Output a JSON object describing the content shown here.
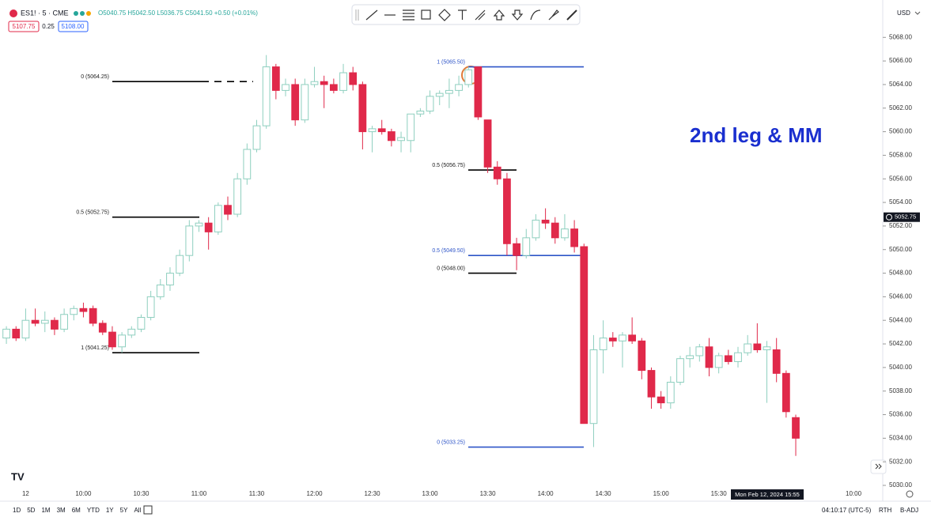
{
  "header": {
    "symbol": "ES1! · 5 · CME",
    "ohlc": "O5040.75 H5042.50 L5036.75 C5041.50 +0.50 (+0.01%)",
    "sell": "5107.75",
    "spread": "0.25",
    "buy": "5108.00",
    "currency": "USD"
  },
  "footer": {
    "ranges": [
      "1D",
      "5D",
      "1M",
      "3M",
      "6M",
      "YTD",
      "1Y",
      "5Y",
      "All"
    ],
    "clock": "04:10:17 (UTC-5)",
    "session": "RTH",
    "adjust": "B-ADJ"
  },
  "chart_data": {
    "type": "candlestick",
    "up_color": "#8ecfbf",
    "down_color": "#e0294a",
    "categories": [
      null,
      null,
      "12",
      null,
      null,
      null,
      null,
      null,
      "10:00",
      null,
      null,
      null,
      null,
      null,
      "10:30",
      null,
      null,
      null,
      null,
      null,
      "11:00",
      null,
      null,
      null,
      null,
      null,
      "11:30",
      null,
      null,
      null,
      null,
      null,
      "12:00",
      null,
      null,
      null,
      null,
      null,
      "12:30",
      null,
      null,
      null,
      null,
      null,
      "13:00",
      null,
      null,
      null,
      null,
      null,
      "13:30",
      null,
      null,
      null,
      null,
      null,
      "14:00",
      null,
      null,
      null,
      null,
      null,
      "14:30",
      null,
      null,
      null,
      null,
      null,
      "15:00",
      null,
      null,
      null,
      null,
      null,
      "15:30",
      null,
      null,
      null,
      null,
      null,
      null,
      null,
      null,
      null,
      null,
      null,
      null,
      null,
      "10:00"
    ],
    "open": [
      5042.5,
      5043.25,
      5042.5,
      5044,
      5043.75,
      5044,
      5043.25,
      5044.5,
      5045,
      5045,
      5043.75,
      5043,
      5041.75,
      5042.75,
      5043.25,
      5044.25,
      5046,
      5047,
      5048,
      5049.5,
      5052,
      5052.25,
      5051.5,
      5053.75,
      5053,
      5056,
      5058.5,
      5060.5,
      5065.5,
      5063.5,
      5064,
      5061,
      5064,
      5064.25,
      5064,
      5063.5,
      5065,
      5064,
      5060,
      5060.25,
      5060,
      5059.25,
      5059.25,
      5061.5,
      5061.75,
      5063,
      5063.25,
      5063.5,
      5064,
      5065.5,
      5061,
      5057,
      5056,
      5050.5,
      5049.5,
      5051,
      5052.5,
      5052.25,
      5051,
      5051.75,
      5050.25,
      5035.25,
      5041.5,
      5042.5,
      5042.25,
      5042.75,
      5042.25,
      5039.75,
      5037.5,
      5037,
      5038.75,
      5040.75,
      5041,
      5041.75,
      5040,
      5041,
      5040.5,
      5041.25,
      5042,
      5041.5,
      5041.5,
      5039.5,
      5035.75,
      null,
      null,
      null,
      null,
      null,
      null
    ],
    "high": [
      5043.5,
      5043.5,
      5045,
      5045,
      5044.75,
      5044.25,
      5045,
      5045.25,
      5045.5,
      5045.25,
      5044,
      5043.5,
      5043,
      5043.5,
      5044.5,
      5046.5,
      5047.5,
      5048.5,
      5050,
      5052.5,
      5052.5,
      5052.75,
      5054,
      5054.5,
      5056.5,
      5059,
      5061,
      5066.5,
      5065.75,
      5064.5,
      5064.5,
      5064.5,
      5065.5,
      5064.75,
      5064.5,
      5065.75,
      5065.5,
      5064.25,
      5060.5,
      5061,
      5060.25,
      5060,
      5061.5,
      5062,
      5063.5,
      5063.5,
      5064.5,
      5064.75,
      5065.5,
      5065.5,
      5061,
      5057.5,
      5056.5,
      5051,
      5051.75,
      5053,
      5053.5,
      5052.75,
      5053,
      5052.5,
      5050.5,
      5042.75,
      5044,
      5043,
      5043,
      5044.25,
      5042.5,
      5040,
      5038,
      5039.25,
      5041,
      5041.75,
      5042,
      5042.5,
      5041.25,
      5041.5,
      5041.75,
      5042.75,
      5043.75,
      5042.25,
      5042.5,
      5039.75,
      5036,
      null,
      null,
      null,
      null,
      null,
      null
    ],
    "low": [
      5042,
      5042.25,
      5042.25,
      5043.5,
      5043,
      5042.75,
      5043,
      5044,
      5044.25,
      5043.5,
      5042.75,
      5041.5,
      5041.25,
      5042.5,
      5043,
      5044,
      5045.75,
      5046.5,
      5047.75,
      5049,
      5051.5,
      5050,
      5051.25,
      5052.5,
      5052.75,
      5055.5,
      5058.25,
      5060.25,
      5062.75,
      5063,
      5060.5,
      5060.75,
      5063.75,
      5062,
      5063.25,
      5063.25,
      5063.5,
      5058.5,
      5058.25,
      5059.75,
      5058.75,
      5058.25,
      5058.25,
      5061.25,
      5061.5,
      5062.25,
      5062,
      5063,
      5063.75,
      5061,
      5056.5,
      5055.5,
      5049.5,
      5048.25,
      5049.25,
      5050.75,
      5051.75,
      5050.5,
      5050.75,
      5049.75,
      5035.25,
      5033.25,
      5039.5,
      5041.75,
      5040,
      5042,
      5039,
      5036.5,
      5036.5,
      5036.5,
      5038.5,
      5040,
      5040.5,
      5039.25,
      5039.5,
      5040.25,
      5040,
      5041,
      5041.25,
      5037,
      5038.75,
      5035.75,
      5032.5,
      null,
      null,
      null,
      null,
      null,
      null
    ],
    "close": [
      5043.25,
      5042.5,
      5044,
      5043.75,
      5044,
      5043.25,
      5044.5,
      5045,
      5044.75,
      5043.75,
      5043,
      5041.75,
      5042.75,
      5043.25,
      5044.25,
      5046,
      5047,
      5048,
      5049.5,
      5052,
      5052.25,
      5051.5,
      5053.75,
      5053,
      5056,
      5058.5,
      5060.5,
      5065.5,
      5063.5,
      5064,
      5061,
      5064,
      5064.25,
      5064,
      5063.5,
      5065,
      5064,
      5060,
      5060.25,
      5060,
      5059.25,
      5059.5,
      5061.5,
      5061.75,
      5063,
      5063.25,
      5063.5,
      5064,
      5065.25,
      5061.25,
      5057,
      5056,
      5050.5,
      5049.5,
      5051,
      5052.5,
      5052.25,
      5051,
      5051.75,
      5050.25,
      5035.25,
      5041.5,
      5042.5,
      5042.25,
      5042.75,
      5042.25,
      5039.75,
      5037.5,
      5037,
      5038.75,
      5040.75,
      5041,
      5041.75,
      5040,
      5041,
      5040.5,
      5041.25,
      5042,
      5041.5,
      5041.75,
      5039.5,
      5036.25,
      5034,
      null,
      null,
      null,
      null,
      null,
      null
    ],
    "ylim": [
      5030,
      5070.5
    ],
    "yticks": [
      {
        "value": 5030,
        "label": "5030.00"
      },
      {
        "value": 5032,
        "label": "5032.00"
      },
      {
        "value": 5034,
        "label": "5034.00"
      },
      {
        "value": 5036,
        "label": "5036.00"
      },
      {
        "value": 5038,
        "label": "5038.00"
      },
      {
        "value": 5040,
        "label": "5040.00"
      },
      {
        "value": 5042,
        "label": "5042.00"
      },
      {
        "value": 5044,
        "label": "5044.00"
      },
      {
        "value": 5046,
        "label": "5046.00"
      },
      {
        "value": 5048,
        "label": "5048.00"
      },
      {
        "value": 5050,
        "label": "5050.00"
      },
      {
        "value": 5052,
        "label": "5052.00"
      },
      {
        "value": 5054,
        "label": "5054.00"
      },
      {
        "value": 5056,
        "label": "5056.00"
      },
      {
        "value": 5058,
        "label": "5058.00"
      },
      {
        "value": 5060,
        "label": "5060.00"
      },
      {
        "value": 5062,
        "label": "5062.00"
      },
      {
        "value": 5064,
        "label": "5064.00"
      },
      {
        "value": 5066,
        "label": "5066.00"
      },
      {
        "value": 5068,
        "label": "5068.00"
      }
    ],
    "crosshair_price": 5052.75,
    "crosshair_time": "Mon Feb 12, 2024 15:55",
    "annotation": "2nd leg & MM",
    "levels": [
      {
        "label": "0 (5064.25)",
        "value": 5064.25,
        "color": "#000000"
      },
      {
        "label": "0.5 (5052.75)",
        "value": 5052.75,
        "color": "#000000"
      },
      {
        "label": "1 (5041.25)",
        "value": 5041.25,
        "color": "#000000"
      },
      {
        "label": "1 (5065.50)",
        "value": 5065.5,
        "color": "#2e55c8"
      },
      {
        "label": "0.5 (5056.75)",
        "value": 5056.75,
        "color": "#000000"
      },
      {
        "label": "0.5 (5049.50)",
        "value": 5049.5,
        "color": "#2e55c8"
      },
      {
        "label": "0 (5048.00)",
        "value": 5048,
        "color": "#000000"
      },
      {
        "label": "0 (5033.25)",
        "value": 5033.25,
        "color": "#2e55c8"
      }
    ]
  }
}
